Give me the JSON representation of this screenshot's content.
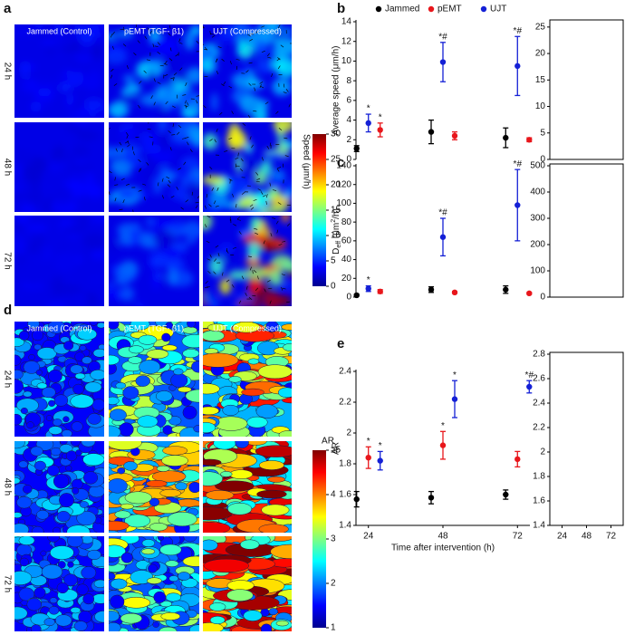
{
  "panel_labels": [
    "a",
    "b",
    "c",
    "d",
    "e"
  ],
  "panel_a": {
    "column_headers": [
      "Jammed (Control)",
      "pEMT (TGF- β1)",
      "UJT (Compressed)"
    ],
    "row_labels": [
      "24 h",
      "48 h",
      "72 h"
    ],
    "colorbar": {
      "label": "Speed (μm/h)",
      "lim": [
        0,
        30
      ],
      "ticks": [
        0,
        5,
        10,
        15,
        20,
        25,
        30
      ]
    }
  },
  "panel_d": {
    "column_headers": [
      "Jammed (Control)",
      "pEMT (TGF- β1)",
      "UJT (Compressed)"
    ],
    "row_labels": [
      "24 h",
      "48 h",
      "72 h"
    ],
    "colorbar": {
      "label": "AR",
      "lim": [
        1,
        5
      ],
      "ticks": [
        1,
        2,
        3,
        4,
        {
          "value": 5,
          "label": "≥5"
        }
      ]
    }
  },
  "chart_data": [
    {
      "type": "errorbar",
      "y_label": "Average speed (μm/h)",
      "x": [
        24,
        48,
        72
      ],
      "xlim": [
        20,
        76
      ],
      "ylim": [
        0,
        14
      ],
      "yticks": [
        0,
        2,
        4,
        6,
        8,
        10,
        12,
        14
      ],
      "series": [
        {
          "name": "Jammed",
          "color": "#000000",
          "values": [
            1.1,
            2.8,
            2.2
          ],
          "errors": [
            0.3,
            1.2,
            1.0
          ],
          "annotations": [
            null,
            null,
            null
          ]
        },
        {
          "name": "pEMT",
          "color": "#e8161b",
          "values": [
            3.0,
            2.4,
            2.0
          ],
          "errors": [
            0.7,
            0.4,
            0.2
          ],
          "annotations": [
            "*",
            null,
            null
          ]
        },
        {
          "name": "UJT",
          "color": "#1420d6",
          "values": [
            3.7,
            9.9,
            9.5
          ],
          "errors": [
            0.9,
            2.0,
            3.0
          ],
          "annotations": [
            "*",
            "*#",
            "*#"
          ]
        }
      ]
    },
    {
      "type": "errorbar",
      "y_label": [
        "D",
        "eff",
        " (μm",
        "2",
        "/h)"
      ],
      "x": [
        24,
        48,
        72
      ],
      "xlim": [
        20,
        76
      ],
      "ylim": [
        0,
        140
      ],
      "yticks": [
        0,
        20,
        40,
        60,
        80,
        100,
        120,
        140
      ],
      "series": [
        {
          "color": "#000000",
          "values": [
            2,
            8,
            8
          ],
          "errors": [
            1,
            3,
            4
          ],
          "annotations": [
            null,
            null,
            null
          ]
        },
        {
          "color": "#e8161b",
          "values": [
            6,
            5,
            4
          ],
          "errors": [
            2,
            1,
            1
          ],
          "annotations": [
            null,
            null,
            null
          ]
        },
        {
          "color": "#1420d6",
          "values": [
            9,
            64,
            98
          ],
          "errors": [
            3,
            20,
            38
          ],
          "annotations": [
            "*",
            "*#",
            "*#"
          ]
        }
      ]
    },
    {
      "type": "errorbar",
      "y_label": "AR",
      "x_label": "Time after intervention (h)",
      "x": [
        24,
        48,
        72
      ],
      "xlim": [
        20,
        76
      ],
      "xticks": [
        24,
        48,
        72
      ],
      "ylim": [
        1.4,
        2.4
      ],
      "yticks": [
        1.4,
        1.6,
        1.8,
        2,
        2.2,
        2.4
      ],
      "series": [
        {
          "color": "#000000",
          "values": [
            1.57,
            1.58,
            1.6
          ],
          "errors": [
            0.05,
            0.04,
            0.03
          ],
          "annotations": [
            null,
            null,
            null
          ]
        },
        {
          "color": "#e8161b",
          "values": [
            1.84,
            1.92,
            1.83
          ],
          "errors": [
            0.07,
            0.09,
            0.05
          ],
          "annotations": [
            "*",
            "*",
            null
          ]
        },
        {
          "color": "#1420d6",
          "values": [
            1.82,
            2.22,
            2.3
          ],
          "errors": [
            0.06,
            0.12,
            0.04
          ],
          "annotations": [
            "*",
            "*",
            "*#"
          ]
        }
      ]
    },
    {
      "type": "frame",
      "ylim": [
        0,
        26
      ],
      "yticks": [
        0,
        5,
        10,
        15,
        20,
        25
      ]
    },
    {
      "type": "frame",
      "ylim": [
        0,
        500
      ],
      "yticks": [
        0,
        100,
        200,
        300,
        400,
        500
      ]
    },
    {
      "type": "frame",
      "xlim": [
        12,
        84
      ],
      "xticks": [
        24,
        48,
        72
      ],
      "ylim": [
        1.4,
        2.8
      ],
      "yticks": [
        1.4,
        1.6,
        1.8,
        2,
        2.2,
        2.4,
        2.6,
        2.8
      ]
    }
  ]
}
